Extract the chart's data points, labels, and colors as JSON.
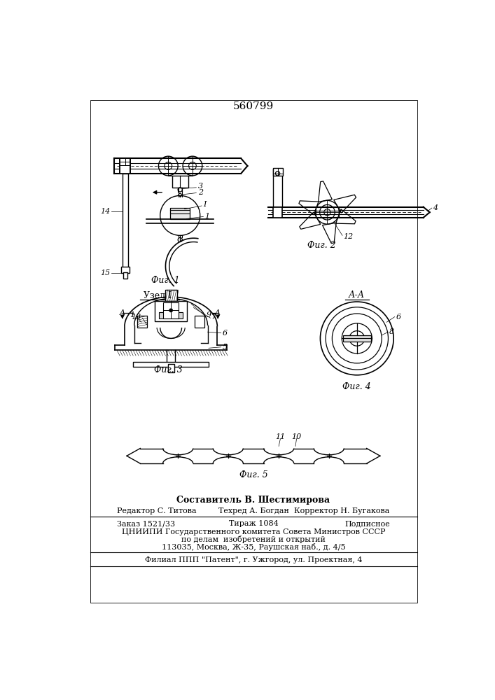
{
  "title": "560799",
  "background_color": "#ffffff",
  "line_color": "#000000",
  "fig1_label": "Фиг. 1",
  "fig2_label": "Фиг. 2",
  "fig3_label": "Фиг. 3",
  "fig4_label": "Фиг. 4",
  "fig5_label": "Фиг. 5",
  "uzell_label": "Узел I",
  "aa_label": "А-А",
  "footer_line1": "Составитель В. Шестимирова",
  "footer_line2_left": "Редактор С. Титова",
  "footer_line2_mid": "Техред А. Богдан",
  "footer_line2_right": "Корректор Н. Бугакова",
  "footer_line3_left": "Заказ 1521/33",
  "footer_line3_mid": "Тираж 1084",
  "footer_line3_right": "Подписное",
  "footer_line4": "ЦНИИПИ Государственного комитета Совета Министров СССР",
  "footer_line5": "по делам  изобретений и открытий",
  "footer_line6": "113035, Москва, Ж-35, Раушская наб., д. 4/5",
  "footer_line7": "Филиал ППП \"Патент\", г. Ужгород, ул. Проектная, 4"
}
